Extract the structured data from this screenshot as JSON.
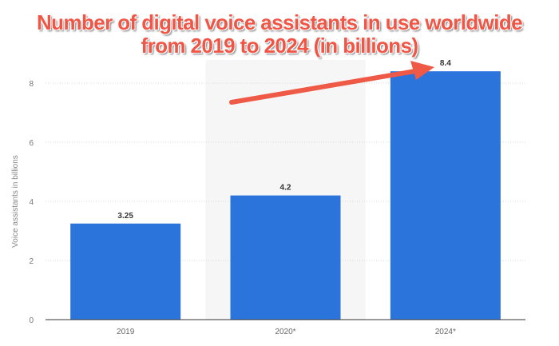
{
  "chart_data": {
    "type": "bar",
    "title_line1": "Number of digital voice assistants in use worldwide",
    "title_line2": "from 2019 to 2024 (in billions)",
    "categories": [
      "2019",
      "2020*",
      "2024*"
    ],
    "values": [
      3.25,
      4.2,
      8.4
    ],
    "value_labels": [
      "3.25",
      "4.2",
      "8.4"
    ],
    "xlabel": "",
    "ylabel": "Voice assistants in billions",
    "ylim": [
      0,
      8.5
    ],
    "yticks": [
      "0",
      "2",
      "4",
      "6",
      "8"
    ],
    "grid": true,
    "highlighted_category": "2020*",
    "annotation": "red arrow pointing from 2020* to 8.4 label",
    "colors": {
      "bar": "#2a74dc",
      "title": "#f05545",
      "arrow": "#ef5a47"
    }
  }
}
